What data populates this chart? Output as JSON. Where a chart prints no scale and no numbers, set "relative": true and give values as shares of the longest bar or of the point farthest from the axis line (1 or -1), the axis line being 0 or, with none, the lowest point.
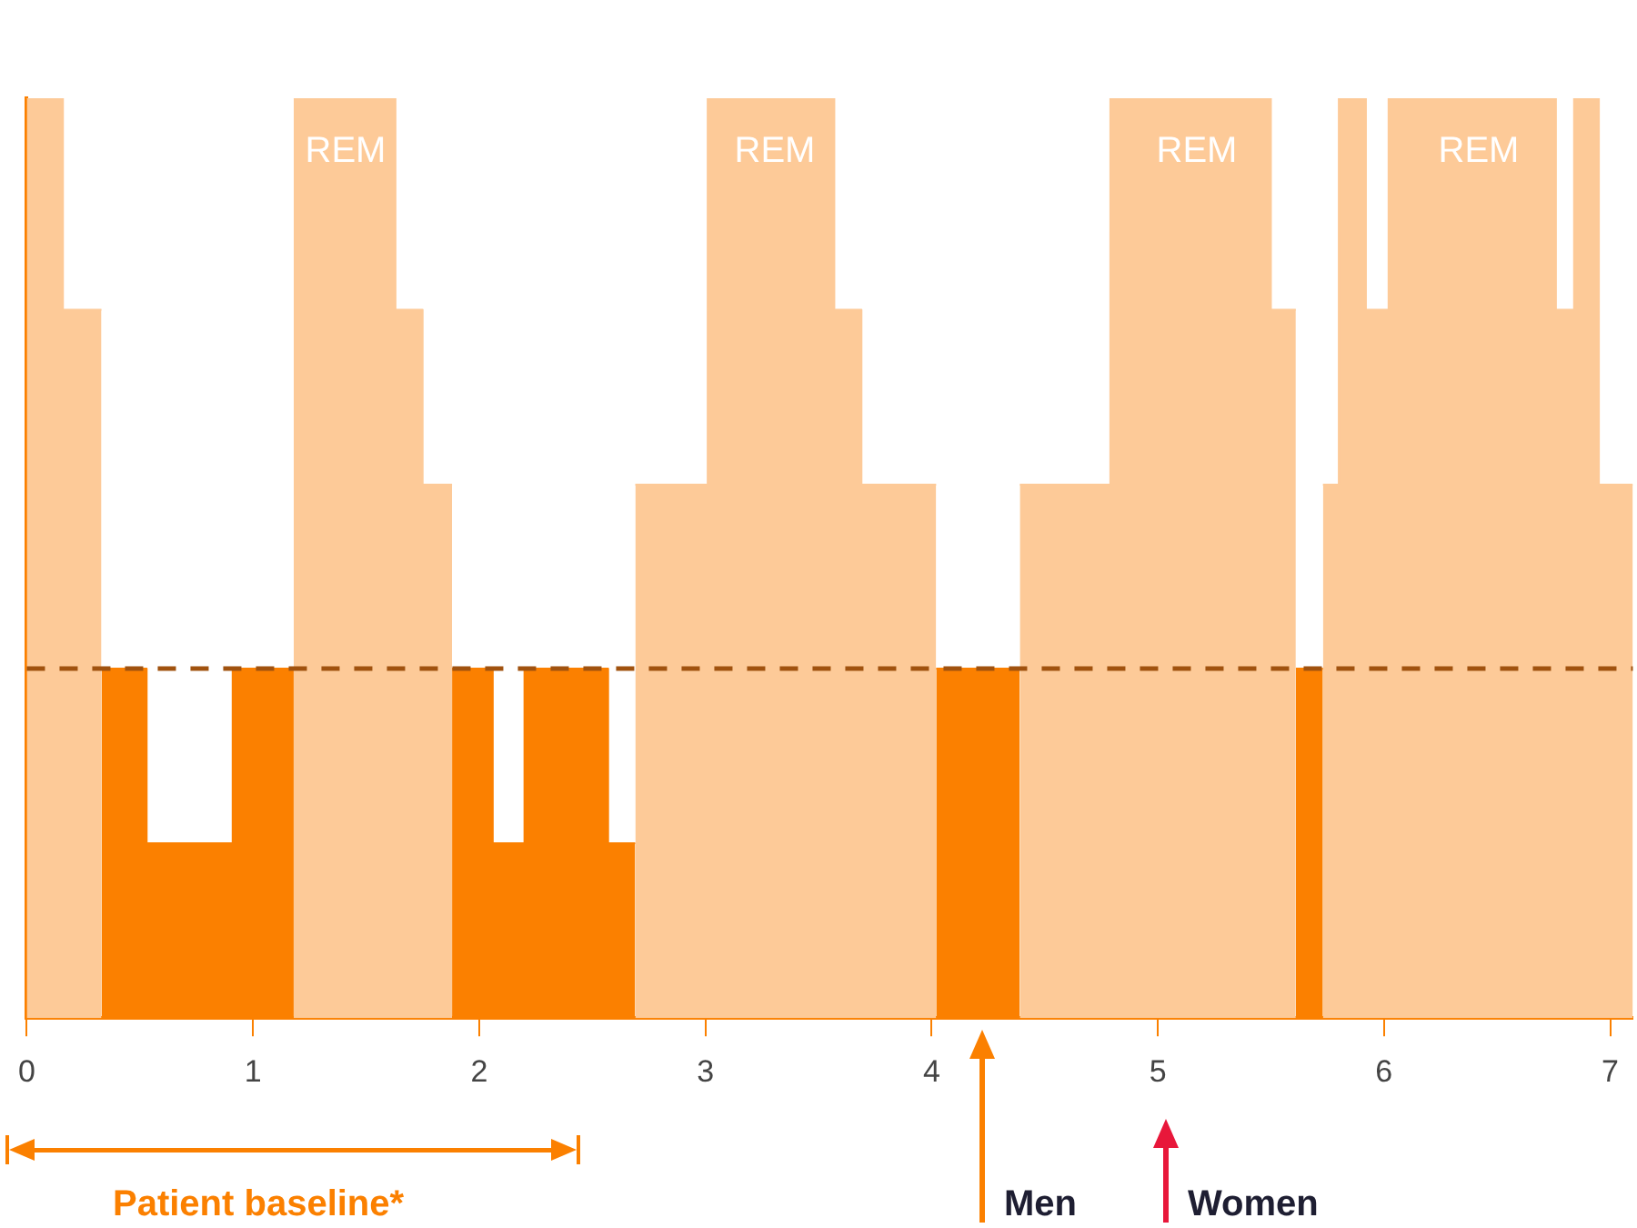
{
  "chart_data": {
    "type": "area",
    "relative": true,
    "xlim": [
      0,
      7.1
    ],
    "xticks": [
      0,
      1,
      2,
      3,
      4,
      5,
      6,
      7
    ],
    "grid": false,
    "legend": false,
    "tick_labels": "x",
    "series": [
      {
        "color": "#fdca98",
        "x": [
          0,
          0.16,
          0.16,
          0.33,
          null,
          1.18,
          1.63,
          1.63,
          1.75,
          1.75,
          1.88,
          null,
          2.69,
          3.01,
          3.01,
          3.57,
          3.57,
          3.69,
          3.69,
          4.02,
          null,
          4.39,
          4.79,
          4.79,
          5.5,
          5.5,
          5.61,
          null,
          5.73,
          5.8,
          5.8,
          5.92,
          5.92,
          6.02,
          6.02,
          6.76,
          6.76,
          6.84,
          6.84,
          6.95,
          6.95,
          7.1
        ],
        "values": [
          1,
          1,
          0.77,
          0.77,
          null,
          1,
          1,
          0.77,
          0.77,
          0.58,
          0.58,
          null,
          0.58,
          0.58,
          1,
          1,
          0.77,
          0.77,
          0.58,
          0.58,
          null,
          0.58,
          0.58,
          1,
          1,
          0.77,
          0.77,
          null,
          0.58,
          0.58,
          1,
          1,
          0.77,
          0.77,
          1,
          1,
          0.77,
          0.77,
          1,
          1,
          0.58,
          0.58
        ]
      },
      {
        "color": "#fb8000",
        "x": [
          0.33,
          0.53,
          0.53,
          0.91,
          0.91,
          1.18,
          null,
          1.88,
          2.06,
          2.06,
          2.2,
          2.2,
          2.57,
          2.57,
          2.69,
          null,
          4.02,
          4.39,
          null,
          5.61,
          5.73
        ],
        "values": [
          0.38,
          0.38,
          0.19,
          0.19,
          0.38,
          0.38,
          null,
          0.38,
          0.38,
          0.19,
          0.19,
          0.38,
          0.38,
          0.19,
          0.19,
          null,
          0.38,
          0.38,
          null,
          0.38,
          0.38
        ]
      }
    ],
    "ref_lines": [
      {
        "axis": "y",
        "value": 0.38,
        "color": "#a0520f",
        "line_style": "dashed"
      }
    ],
    "annotations": [
      "REM",
      "REM",
      "REM",
      "REM",
      "Men",
      "Women",
      "Patient baseline*"
    ]
  }
}
